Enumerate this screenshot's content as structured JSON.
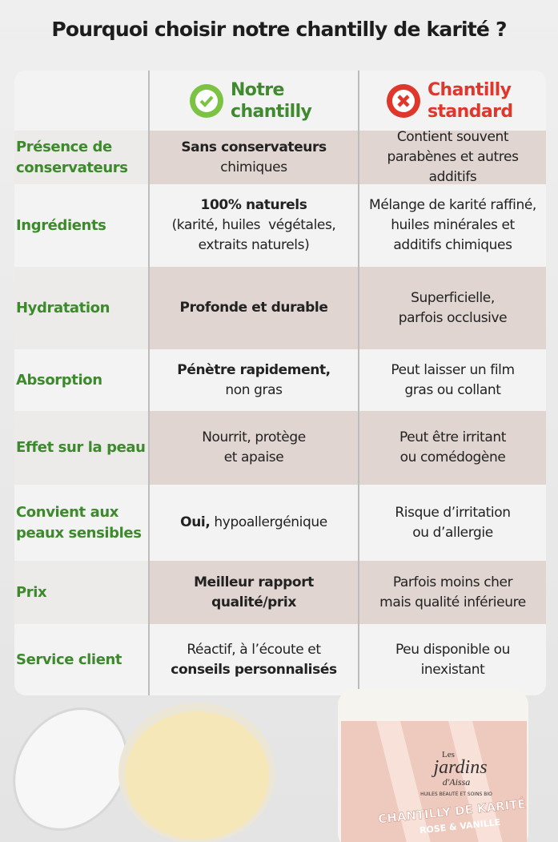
{
  "header": {
    "title": "Pourquoi choisir notre chantilly de karité ?"
  },
  "columns": [
    {
      "label": "Notre chantilly",
      "color": "#3f8a2e"
    },
    {
      "label": "Chantilly standard",
      "color": "#e0372c"
    }
  ],
  "rows": [
    {
      "label": "Présence de conservateurs",
      "ours": [
        [
          {
            "text": "Sans conservateurs",
            "weight": "bold"
          }
        ],
        [
          {
            "text": "chimiques"
          }
        ]
      ],
      "standard": [
        [
          {
            "text": "Contient souvent"
          }
        ],
        [
          {
            "text": "parabènes et autres"
          }
        ],
        [
          {
            "text": "additifs"
          }
        ]
      ]
    },
    {
      "label": "Ingrédients",
      "ours": [
        [
          {
            "text": "100% naturels",
            "weight": "bold"
          }
        ],
        [
          {
            "text": "(karité, huiles  végétales,"
          }
        ],
        [
          {
            "text": "extraits naturels)"
          }
        ]
      ],
      "standard": [
        [
          {
            "text": "Mélange de karité raffiné,"
          }
        ],
        [
          {
            "text": "huiles minérales et"
          }
        ],
        [
          {
            "text": "additifs chimiques"
          }
        ]
      ]
    },
    {
      "label": "Hydratation",
      "ours": [
        [
          {
            "text": "Profonde et durable",
            "weight": "bold"
          }
        ]
      ],
      "standard": [
        [
          {
            "text": "Superficielle,"
          }
        ],
        [
          {
            "text": "parfois occlusive"
          }
        ]
      ]
    },
    {
      "label": "Absorption",
      "ours": [
        [
          {
            "text": "Pénètre rapidement,",
            "weight": "bold"
          }
        ],
        [
          {
            "text": "non gras"
          }
        ]
      ],
      "standard": [
        [
          {
            "text": "Peut laisser un film"
          }
        ],
        [
          {
            "text": "gras ou collant"
          }
        ]
      ]
    },
    {
      "label": "Effet sur la peau",
      "ours": [
        [
          {
            "text": "Nourrit, protège"
          }
        ],
        [
          {
            "text": "et apaise"
          }
        ]
      ],
      "standard": [
        [
          {
            "text": "Peut être irritant"
          }
        ],
        [
          {
            "text": "ou comédogène"
          }
        ]
      ]
    },
    {
      "label": "Convient aux peaux sensibles",
      "ours": [
        [
          {
            "text": "Oui,",
            "weight": "bold"
          },
          {
            "text": " hypoallergénique"
          }
        ]
      ],
      "standard": [
        [
          {
            "text": "Risque d’irritation"
          }
        ],
        [
          {
            "text": "ou d’allergie"
          }
        ]
      ]
    },
    {
      "label": "Prix",
      "ours": [
        [
          {
            "text": "Meilleur rapport",
            "weight": "bold"
          }
        ],
        [
          {
            "text": "qualité/prix",
            "weight": "bold"
          }
        ]
      ],
      "standard": [
        [
          {
            "text": "Parfois moins cher"
          }
        ],
        [
          {
            "text": "mais qualité inférieure"
          }
        ]
      ]
    },
    {
      "label": "Service client",
      "ours": [
        [
          {
            "text": "Réactif, à l’écoute et"
          }
        ],
        [
          {
            "text": "conseils personnalisés",
            "weight": "bold"
          }
        ]
      ],
      "standard": [
        [
          {
            "text": "Peu disponible ou"
          }
        ],
        [
          {
            "text": "inexistant"
          }
        ]
      ]
    }
  ],
  "product": {
    "brand_small": "Les",
    "brand": "jardins",
    "brand_suffix": "d'Aissa",
    "tagline": "HUILES BEAUTÉ ET SOINS BIO",
    "name": "CHANTILLY DE KARITÉ",
    "flavor": "ROSE & VANILLE"
  }
}
